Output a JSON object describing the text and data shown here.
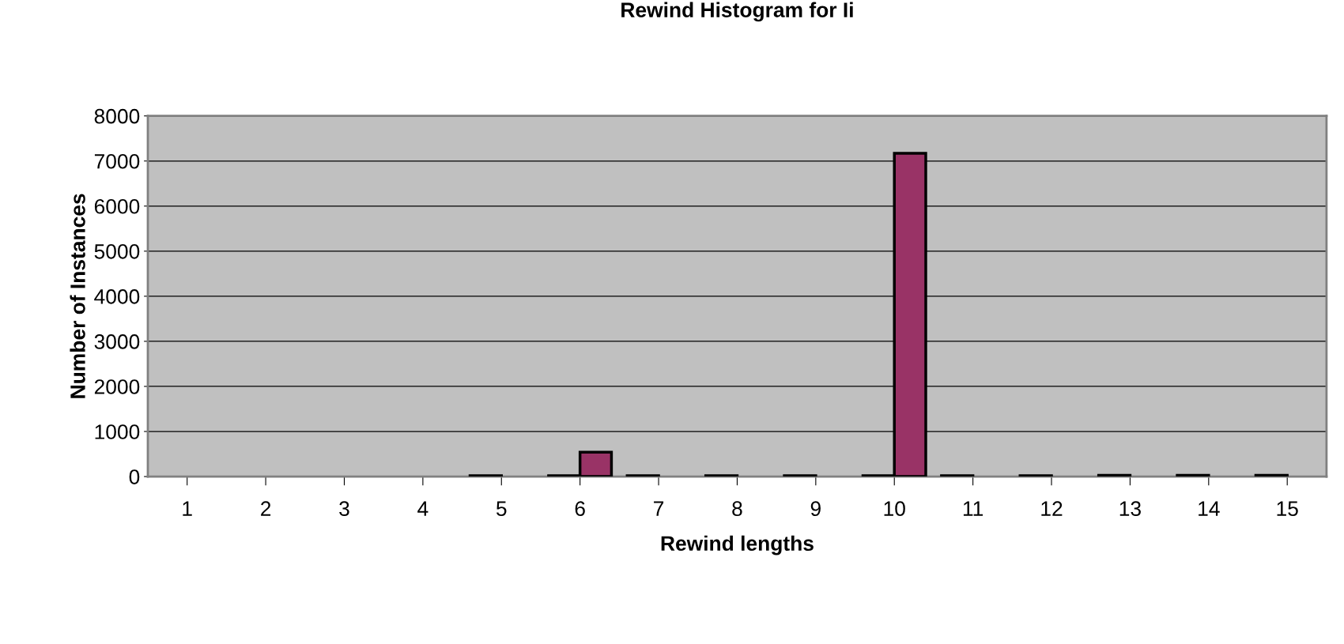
{
  "chart_data": {
    "type": "bar",
    "title": "Rewind Histogram for Ii",
    "xlabel": "Rewind lengths",
    "ylabel": "Number of Instances",
    "categories": [
      "1",
      "2",
      "3",
      "4",
      "5",
      "6",
      "7",
      "8",
      "9",
      "10",
      "11",
      "12",
      "13",
      "14",
      "15"
    ],
    "series": [
      {
        "color": "#9999ff",
        "values": [
          null,
          null,
          null,
          null,
          20,
          20,
          20,
          20,
          20,
          20,
          20,
          20,
          30,
          30,
          30
        ]
      },
      {
        "color": "#993366",
        "values": [
          null,
          null,
          null,
          null,
          null,
          540,
          null,
          null,
          null,
          7170,
          null,
          null,
          null,
          null,
          null
        ]
      }
    ],
    "ylim": [
      0,
      8000
    ],
    "yticks": [
      0,
      1000,
      2000,
      3000,
      4000,
      5000,
      6000,
      7000,
      8000
    ],
    "grid": "y",
    "legend": false
  }
}
